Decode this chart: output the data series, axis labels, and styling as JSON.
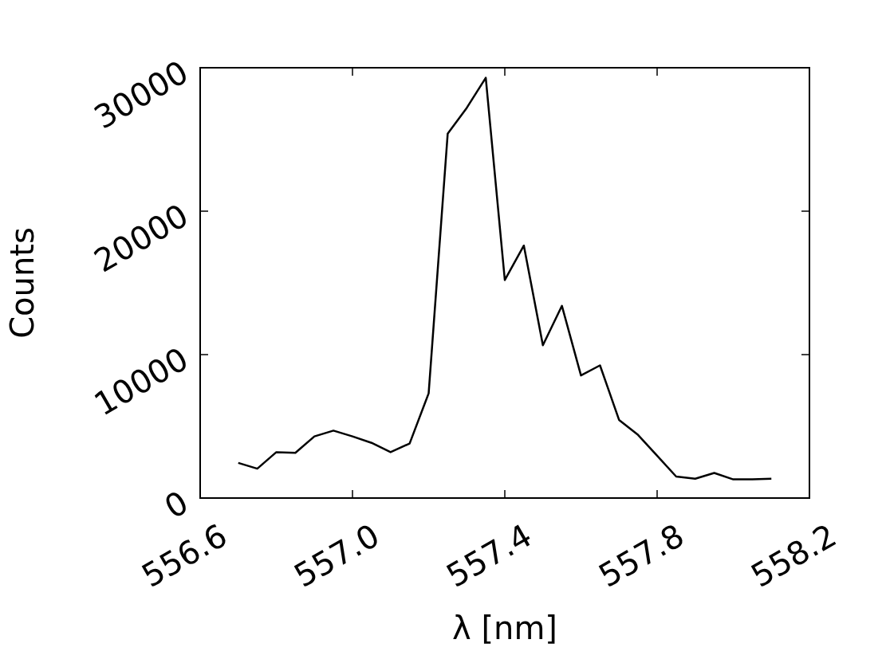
{
  "chart_data": {
    "type": "line",
    "xlabel": "λ [nm]",
    "ylabel": "Counts",
    "x": [
      556.7,
      556.75,
      556.8,
      556.85,
      556.9,
      556.95,
      557.0,
      557.05,
      557.1,
      557.15,
      557.2,
      557.25,
      557.3,
      557.35,
      557.4,
      557.45,
      557.5,
      557.55,
      557.6,
      557.65,
      557.7,
      557.75,
      557.8,
      557.85,
      557.9,
      557.95,
      558.0,
      558.05,
      558.1
    ],
    "series": [
      {
        "color": "#000000",
        "values": [
          2450,
          2050,
          3200,
          3150,
          4300,
          4700,
          4300,
          3850,
          3200,
          3800,
          7300,
          25400,
          27200,
          29300,
          15200,
          17600,
          10650,
          13400,
          8550,
          9250,
          5450,
          4400,
          2950,
          1500,
          1350,
          1750,
          1300,
          1300,
          1350
        ]
      }
    ],
    "xlim": [
      556.6,
      558.2
    ],
    "xticks": [
      {
        "value": 556.6,
        "label": "556.6"
      },
      {
        "value": 557.0,
        "label": "557.0"
      },
      {
        "value": 557.4,
        "label": "557.4"
      },
      {
        "value": 557.8,
        "label": "557.8"
      },
      {
        "value": 558.2,
        "label": "558.2"
      }
    ],
    "ylim": [
      0,
      30000
    ],
    "yticks": [
      0,
      10000,
      20000,
      30000
    ],
    "grid": false,
    "legend": false,
    "marker": "none",
    "line_style": "solid"
  }
}
